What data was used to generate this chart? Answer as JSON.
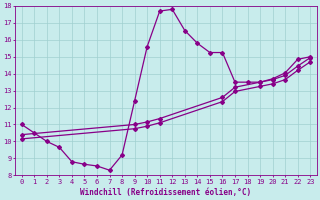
{
  "xlabel": "Windchill (Refroidissement éolien,°C)",
  "xlim": [
    -0.5,
    23.5
  ],
  "ylim": [
    8,
    18
  ],
  "xticks": [
    0,
    1,
    2,
    3,
    4,
    5,
    6,
    7,
    8,
    9,
    10,
    11,
    12,
    13,
    14,
    15,
    16,
    17,
    18,
    19,
    20,
    21,
    22,
    23
  ],
  "yticks": [
    8,
    9,
    10,
    11,
    12,
    13,
    14,
    15,
    16,
    17,
    18
  ],
  "bg_color": "#c8ecec",
  "line_color": "#880088",
  "grid_color": "#a0d0d0",
  "curve1_x": [
    0,
    1,
    2,
    3,
    4,
    5,
    6,
    7,
    8,
    9,
    10,
    11,
    12,
    13,
    14,
    15,
    16,
    17,
    18,
    19,
    20,
    21,
    22,
    23
  ],
  "curve1_y": [
    11.0,
    10.5,
    10.0,
    9.65,
    8.8,
    8.65,
    8.55,
    8.3,
    9.2,
    12.4,
    15.6,
    17.7,
    17.8,
    16.55,
    15.8,
    15.25,
    15.25,
    13.5,
    13.5,
    13.5,
    13.7,
    14.05,
    14.85,
    15.0
  ],
  "curve2_x": [
    0,
    9,
    10,
    11,
    16,
    17,
    19,
    20,
    21,
    22,
    23
  ],
  "curve2_y": [
    10.4,
    11.0,
    11.15,
    11.35,
    12.6,
    13.2,
    13.5,
    13.65,
    13.9,
    14.45,
    14.95
  ],
  "curve3_x": [
    0,
    9,
    10,
    11,
    16,
    17,
    19,
    20,
    21,
    22,
    23
  ],
  "curve3_y": [
    10.15,
    10.75,
    10.9,
    11.1,
    12.35,
    12.95,
    13.25,
    13.4,
    13.65,
    14.2,
    14.7
  ],
  "marker": "D",
  "markersize": 2.0,
  "linewidth": 0.9
}
